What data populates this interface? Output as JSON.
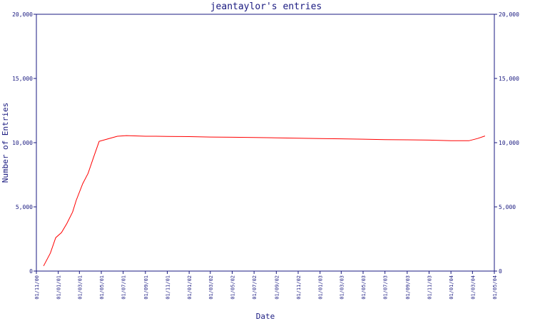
{
  "chart_data": {
    "type": "line",
    "title": "jeantaylor's entries",
    "xlabel": "Date",
    "ylabel": "Number of Entries",
    "ylim": [
      0,
      20000
    ],
    "y_ticks": [
      0,
      5000,
      10000,
      15000,
      20000
    ],
    "y_tick_labels": [
      "0",
      "5,000",
      "10,000",
      "15,000",
      "20,000"
    ],
    "x_tick_labels": [
      "01/11/00",
      "01/01/01",
      "01/03/01",
      "01/05/01",
      "01/07/01",
      "01/09/01",
      "01/11/01",
      "01/01/02",
      "01/03/02",
      "01/05/02",
      "01/07/02",
      "01/09/02",
      "01/11/02",
      "01/01/03",
      "01/03/03",
      "01/05/03",
      "01/07/03",
      "01/09/03",
      "01/11/03",
      "01/01/04",
      "01/03/04",
      "01/05/04"
    ],
    "grid": false,
    "colors": {
      "series": "#ff0000",
      "axis": "#1a1a80"
    },
    "series": [
      {
        "x": [
          "2000-11-21",
          "2000-12-10",
          "2000-12-25",
          "2001-01-10",
          "2001-01-25",
          "2001-02-10",
          "2001-02-20",
          "2001-03-10",
          "2001-03-25",
          "2001-04-10",
          "2001-04-25",
          "2001-05-20",
          "2001-06-15",
          "2001-07-10",
          "2001-08-10",
          "2001-09-01",
          "2001-10-01",
          "2001-11-01",
          "2001-12-01",
          "2002-01-01",
          "2002-03-01",
          "2002-05-01",
          "2002-07-01",
          "2002-09-01",
          "2002-11-01",
          "2003-01-01",
          "2003-03-01",
          "2003-05-01",
          "2003-07-01",
          "2003-09-01",
          "2003-11-01",
          "2004-01-01",
          "2004-02-20",
          "2004-03-15",
          "2004-04-05"
        ],
        "values": [
          400,
          1400,
          2600,
          3000,
          3700,
          4600,
          5500,
          6800,
          7600,
          8900,
          10100,
          10300,
          10500,
          10550,
          10520,
          10500,
          10500,
          10490,
          10480,
          10470,
          10440,
          10420,
          10400,
          10380,
          10350,
          10320,
          10300,
          10270,
          10240,
          10220,
          10200,
          10150,
          10150,
          10320,
          10520
        ]
      }
    ]
  }
}
